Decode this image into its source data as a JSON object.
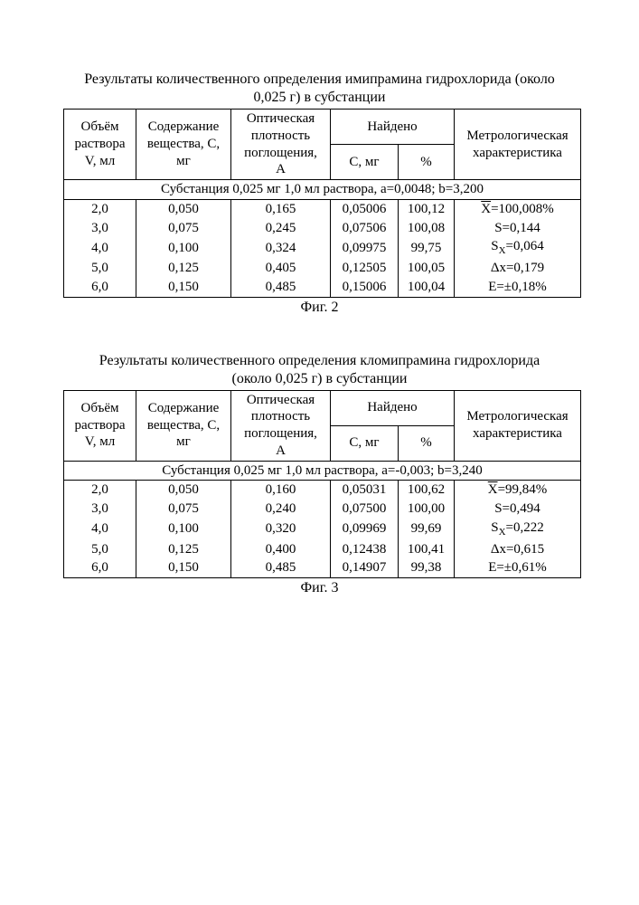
{
  "table2": {
    "title_line1": "Результаты количественного определения имипрамина гидрохлорида (около",
    "title_line2": "0,025 г) в субстанции",
    "headers": {
      "col1": "Объём раствора V, мл",
      "col2": "Содержание вещества, C, мг",
      "col3": "Оптическая плотность поглощения, A",
      "col45": "Найдено",
      "col4": "C, мг",
      "col5": "%",
      "col6": "Метрологическая характеристика"
    },
    "substance_row": "Субстанция 0,025 мг 1,0 мл раствора, a=0,0048; b=3,200",
    "rows": [
      {
        "v": "2,0",
        "c": "0,050",
        "a": "0,165",
        "cmg": "0,05006",
        "pct": "100,12",
        "m": "X̄=100,008%"
      },
      {
        "v": "3,0",
        "c": "0,075",
        "a": "0,245",
        "cmg": "0,07506",
        "pct": "100,08",
        "m": "S=0,144"
      },
      {
        "v": "4,0",
        "c": "0,100",
        "a": "0,324",
        "cmg": "0,09975",
        "pct": "99,75",
        "m": "Sx=0,064"
      },
      {
        "v": "5,0",
        "c": "0,125",
        "a": "0,405",
        "cmg": "0,12505",
        "pct": "100,05",
        "m": "Δx=0,179"
      },
      {
        "v": "6,0",
        "c": "0,150",
        "a": "0,485",
        "cmg": "0,15006",
        "pct": "100,04",
        "m": "E=±0,18%"
      }
    ],
    "caption": "Фиг. 2"
  },
  "table3": {
    "title_line1": "Результаты количественного определения кломипрамина гидрохлорида",
    "title_line2": "(около 0,025 г) в субстанции",
    "headers": {
      "col1": "Объём раствора V, мл",
      "col2": "Содержание вещества, C, мг",
      "col3": "Оптическая плотность поглощения, A",
      "col45": "Найдено",
      "col4": "C, мг",
      "col5": "%",
      "col6": "Метрологическая характеристика"
    },
    "substance_row": "Субстанция 0,025 мг 1,0 мл раствора, a=-0,003; b=3,240",
    "rows": [
      {
        "v": "2,0",
        "c": "0,050",
        "a": "0,160",
        "cmg": "0,05031",
        "pct": "100,62",
        "m": "X̄=99,84%"
      },
      {
        "v": "3,0",
        "c": "0,075",
        "a": "0,240",
        "cmg": "0,07500",
        "pct": "100,00",
        "m": "S=0,494"
      },
      {
        "v": "4,0",
        "c": "0,100",
        "a": "0,320",
        "cmg": "0,09969",
        "pct": "99,69",
        "m": "Sx=0,222"
      },
      {
        "v": "5,0",
        "c": "0,125",
        "a": "0,400",
        "cmg": "0,12438",
        "pct": "100,41",
        "m": "Δx=0,615"
      },
      {
        "v": "6,0",
        "c": "0,150",
        "a": "0,485",
        "cmg": "0,14907",
        "pct": "99,38",
        "m": "E=±0,61%"
      }
    ],
    "caption": "Фиг. 3"
  }
}
